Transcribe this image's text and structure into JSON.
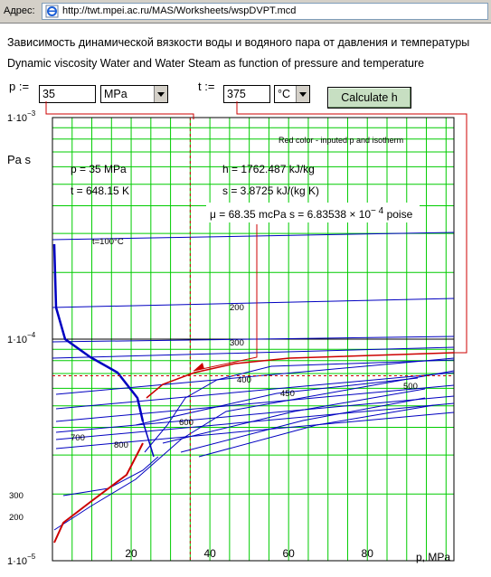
{
  "browser": {
    "address_label": "Адрес:",
    "url": "http://twt.mpei.ac.ru/MAS/Worksheets/wspDVPT.mcd"
  },
  "header": {
    "title_ru": "Зависимость динамической вязкости воды и водяного пара от давления и температуры",
    "title_en": "Dynamic viscosity Water and Water Steam as function of pressure and temperature"
  },
  "inputs": {
    "p_label": "p :=",
    "p_value": "35",
    "p_unit": "MPa",
    "t_label": "t :=",
    "t_value": "375",
    "t_unit": "°C",
    "calc_button": "Calculate h"
  },
  "results": {
    "note": "Red color - inputed p and isotherm",
    "p": "p = 35 MPa",
    "h": "h = 1762.487 kJ/kg",
    "t": "t = 648.15 K",
    "s": "s = 3.8725 kJ/(kg K)",
    "mu": "μ = 68.35 mcPa s = 6.83538 × 10",
    "mu_exp": "− 4",
    "mu_unit": "poise"
  },
  "colors": {
    "grid": "#00cc00",
    "isotherm": "#0000c0",
    "highlight": "#cc0000"
  },
  "chart_data": {
    "type": "line",
    "xlabel": "p, MPa",
    "ylabel": "Pa s",
    "x_ticks": [
      "20",
      "40",
      "60",
      "80"
    ],
    "y_ticks": [
      "1·10",
      "1·10",
      "1·10"
    ],
    "y_exps": [
      "−3",
      "−4",
      "−5"
    ],
    "x_range": [
      0,
      102
    ],
    "y_range": [
      1e-05,
      0.001
    ],
    "y_scale": "log",
    "grid": true,
    "isotherm_labels": [
      "t=100°C",
      "200",
      "300",
      "400",
      "450",
      "500",
      "600",
      "700",
      "800",
      "300",
      "200"
    ],
    "selected": {
      "p": 35,
      "mu": 6.83538e-05
    }
  }
}
